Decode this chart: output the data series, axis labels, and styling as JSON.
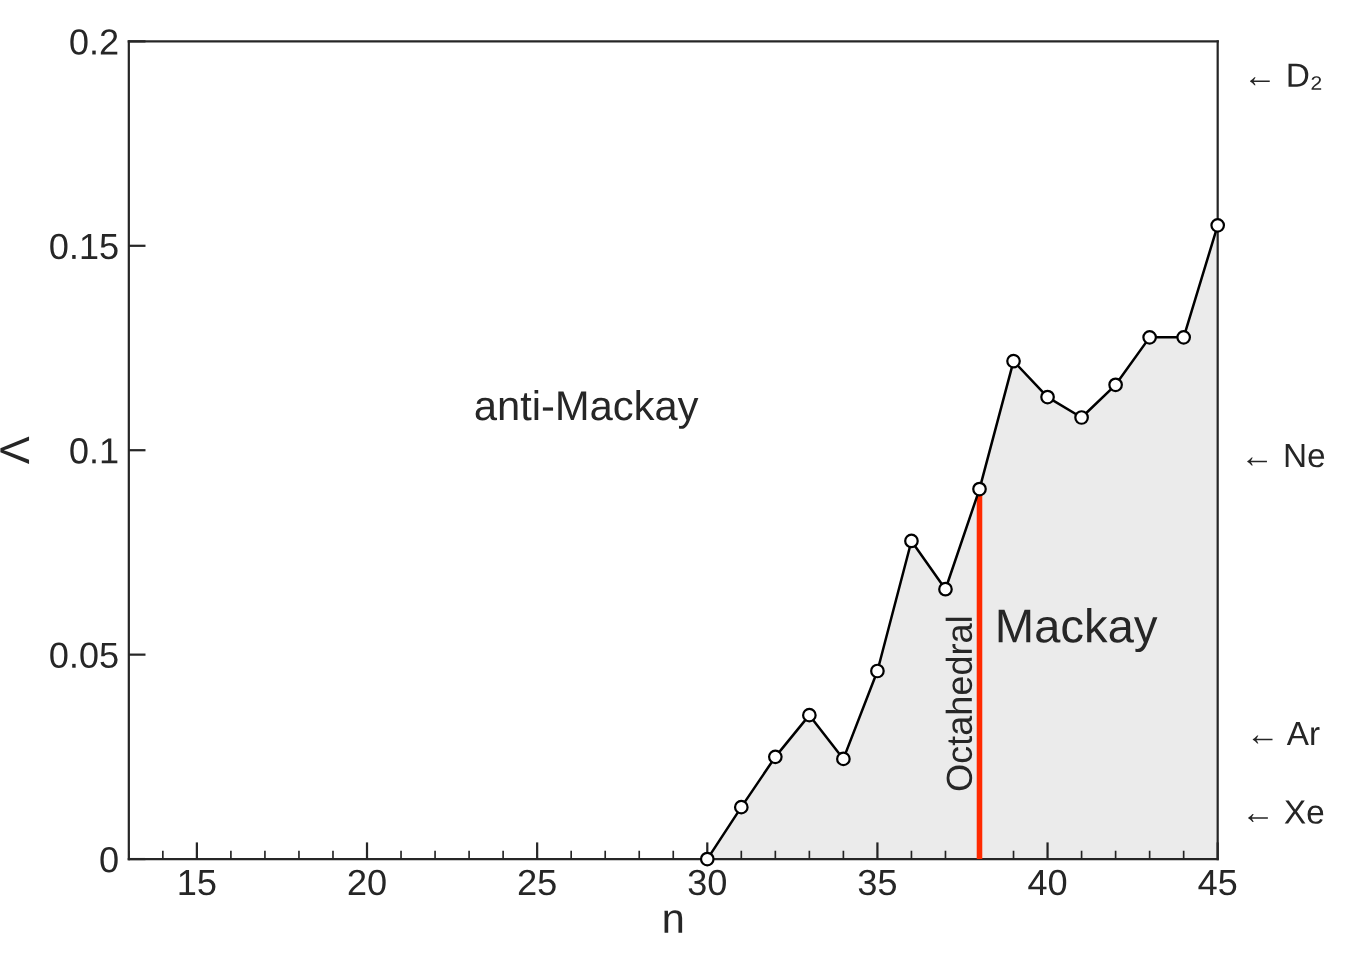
{
  "chart_data": {
    "type": "area",
    "xlabel": "n",
    "ylabel": "Λ",
    "x": [
      30,
      31,
      32,
      33,
      34,
      35,
      36,
      37,
      38,
      39,
      40,
      41,
      42,
      43,
      44,
      45
    ],
    "series": [
      {
        "color": "#000000",
        "values": [
          0,
          0.0127,
          0.025,
          0.0352,
          0.0245,
          0.046,
          0.0778,
          0.066,
          0.0905,
          0.1218,
          0.113,
          0.108,
          0.116,
          0.1276,
          0.1276,
          0.155
        ]
      }
    ],
    "marker": "circle",
    "line_style": "solid",
    "xlim": [
      13,
      45
    ],
    "xticks": [
      15,
      20,
      25,
      30,
      35,
      40,
      45
    ],
    "ylim": [
      0,
      0.2
    ],
    "yticks": [
      {
        "value": 0,
        "label": "0"
      },
      0.05,
      0.1,
      0.15,
      0.2
    ],
    "ref_lines": [
      {
        "axis": "x",
        "value": 38,
        "label": "Octahedral",
        "color": "#ff2a00"
      }
    ],
    "annotations": [
      "anti-Mackay",
      "Mackay",
      "← D₂",
      "← Ne",
      "← Ar",
      "← Xe"
    ],
    "grid": false
  }
}
